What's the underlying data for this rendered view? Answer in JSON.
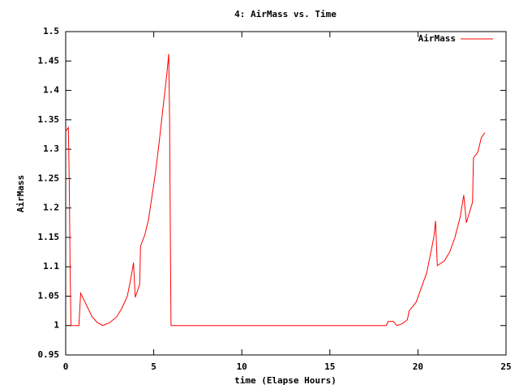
{
  "chart_data": {
    "type": "line",
    "title": "4: AirMass vs. Time",
    "x_label": "time (Elapse Hours)",
    "y_label": "AirMass",
    "x": [
      0,
      0.15,
      0.2,
      0.25,
      0.3,
      0.75,
      0.85,
      1.5,
      1.8,
      2.1,
      2.5,
      2.9,
      3.2,
      3.5,
      3.7,
      3.85,
      3.95,
      4.2,
      4.25,
      4.5,
      4.7,
      4.9,
      5.1,
      5.3,
      5.45,
      5.6,
      5.75,
      5.85,
      5.9,
      5.95,
      5.98,
      18.2,
      18.3,
      18.6,
      18.8,
      19.1,
      19.4,
      19.5,
      19.9,
      20.2,
      20.5,
      20.7,
      20.9,
      21.0,
      21.1,
      21.5,
      21.8,
      22.1,
      22.4,
      22.6,
      22.75,
      22.9,
      23.1,
      23.15,
      23.4,
      23.6,
      23.8
    ],
    "series": [
      {
        "name": "AirMass",
        "color": "#ff0000",
        "values": [
          1.33,
          1.337,
          1.25,
          1.1,
          1.0,
          1.0,
          1.055,
          1.015,
          1.005,
          1.0,
          1.005,
          1.015,
          1.03,
          1.05,
          1.08,
          1.107,
          1.048,
          1.07,
          1.135,
          1.155,
          1.18,
          1.22,
          1.26,
          1.31,
          1.35,
          1.39,
          1.43,
          1.462,
          1.35,
          1.12,
          1.0,
          1.0,
          1.007,
          1.007,
          1.0,
          1.003,
          1.01,
          1.025,
          1.04,
          1.065,
          1.09,
          1.12,
          1.15,
          1.178,
          1.102,
          1.11,
          1.125,
          1.15,
          1.185,
          1.222,
          1.175,
          1.19,
          1.21,
          1.285,
          1.295,
          1.32,
          1.328
        ]
      }
    ],
    "xlim": [
      0,
      25
    ],
    "xticks": [
      0,
      5,
      10,
      15,
      20,
      25
    ],
    "ylim": [
      0.95,
      1.5
    ],
    "yticks": [
      0.95,
      1,
      1.05,
      1.1,
      1.15,
      1.2,
      1.25,
      1.3,
      1.35,
      1.4,
      1.45,
      1.5
    ],
    "grid": false,
    "legend": "top-right"
  }
}
